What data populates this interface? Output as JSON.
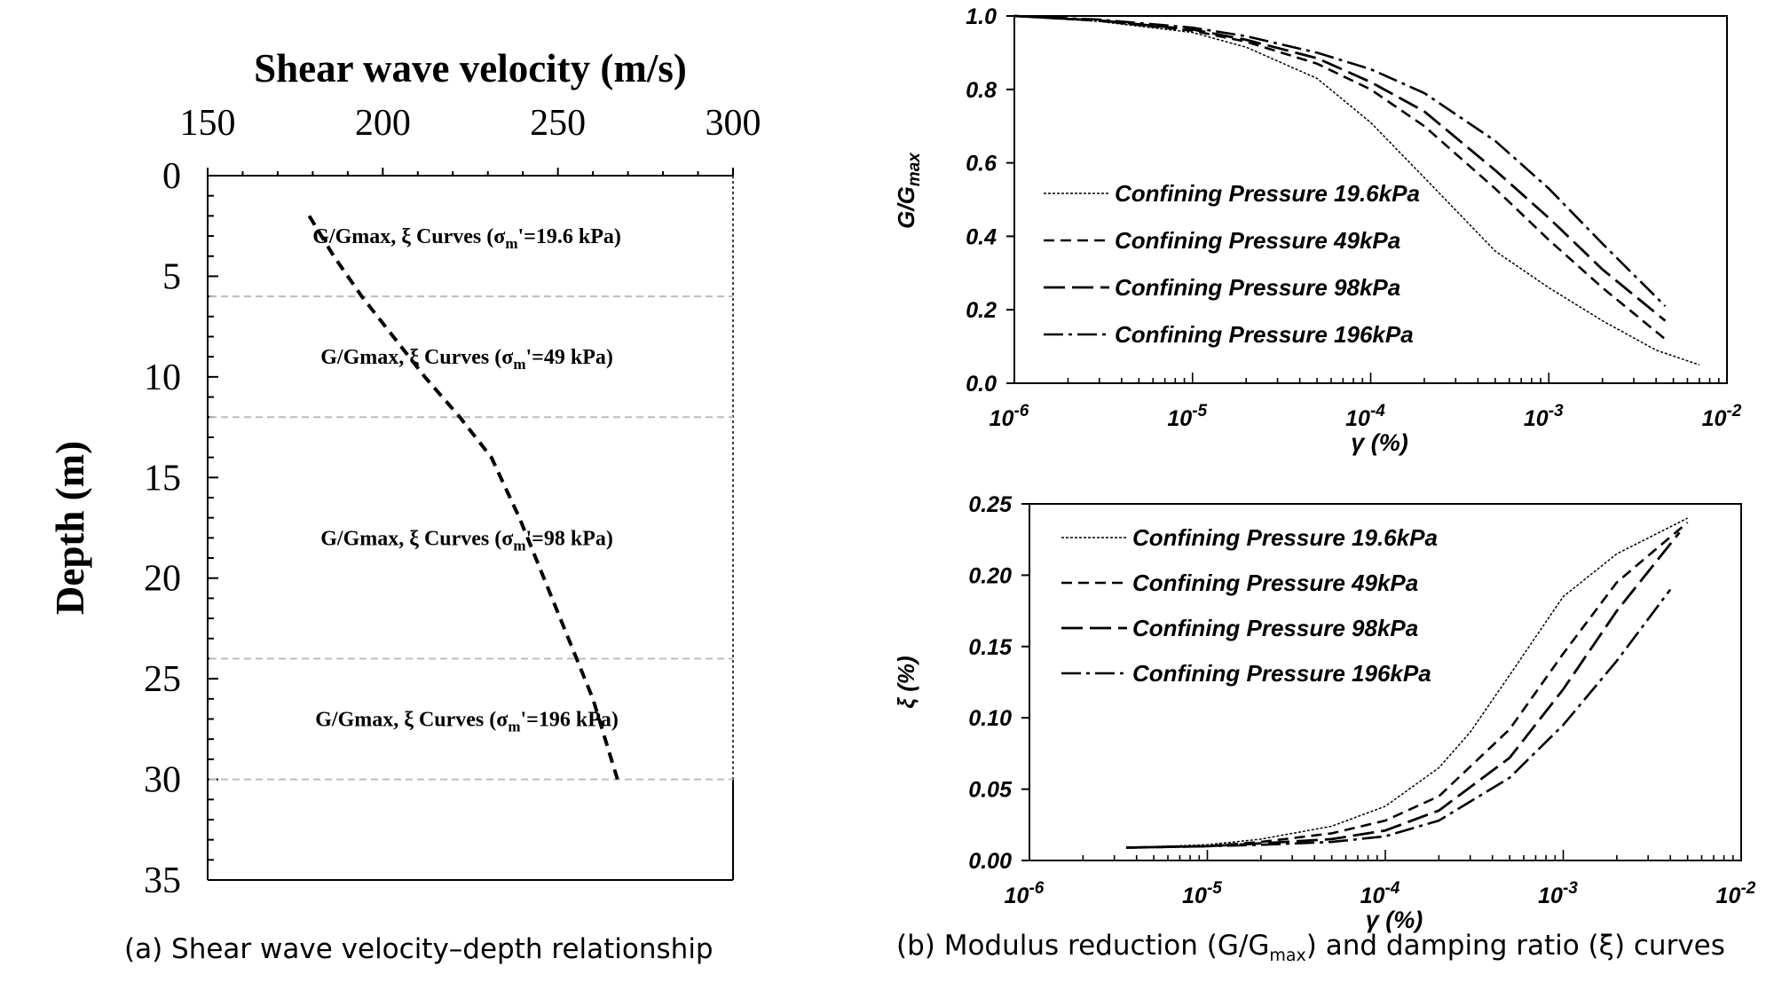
{
  "chart_data": [
    {
      "type": "line",
      "title": "Shear wave velocity (m/s)",
      "xlabel": "Shear wave velocity (m/s)",
      "ylabel": "Depth (m)",
      "xlim": [
        150,
        300
      ],
      "ylim": [
        35,
        0
      ],
      "x_ticks": [
        "150",
        "200",
        "250",
        "300"
      ],
      "y_ticks": [
        "0",
        "5",
        "10",
        "15",
        "20",
        "25",
        "30",
        "35"
      ],
      "series": [
        {
          "x": [
            179,
            186,
            194,
            203,
            212,
            222,
            231,
            239,
            246,
            253,
            260,
            267
          ],
          "y": [
            2,
            4,
            6,
            8,
            10,
            12,
            14,
            17,
            20,
            23,
            26,
            30
          ]
        }
      ],
      "layer_boundaries": [
        6,
        12,
        24,
        30
      ],
      "annotations": [
        {
          "prefix": "G/Gmax,  ξ Curves (σ",
          "sub": "m",
          "suffix": "'=19.6 kPa)",
          "depth": 3
        },
        {
          "prefix": "G/Gmax,  ξ Curves (σ",
          "sub": "m",
          "suffix": "'=49 kPa)",
          "depth": 9
        },
        {
          "prefix": "G/Gmax,  ξ Curves (σ",
          "sub": "m",
          "suffix": "'=98 kPa)",
          "depth": 18
        },
        {
          "prefix": "G/Gmax,  ξ Curves (σ",
          "sub": "m",
          "suffix": "'=196 kPa)",
          "depth": 27
        }
      ],
      "grid": false
    },
    {
      "type": "line",
      "x_scale": "log",
      "xlim": [
        1e-06,
        0.01
      ],
      "ylim": [
        0.0,
        1.0
      ],
      "xlabel": "γ (%)",
      "ylabel_main": "G/G",
      "ylabel_sub": "max",
      "y_ticks": [
        "0.0",
        "0.2",
        "0.4",
        "0.6",
        "0.8",
        "1.0"
      ],
      "x_ticks": [
        {
          "base": "10",
          "exp": "-6"
        },
        {
          "base": "10",
          "exp": "-5"
        },
        {
          "base": "10",
          "exp": "-4"
        },
        {
          "base": "10",
          "exp": "-3"
        },
        {
          "base": "10",
          "exp": "-2"
        }
      ],
      "legend_position": "center-left",
      "series": [
        {
          "name": "Confining Pressure 19.6kPa",
          "x": [
            1e-06,
            3e-06,
            1e-05,
            2e-05,
            5e-05,
            0.0001,
            0.0002,
            0.0005,
            0.001,
            0.002,
            0.004,
            0.007
          ],
          "y": [
            1.0,
            0.985,
            0.955,
            0.915,
            0.83,
            0.71,
            0.56,
            0.36,
            0.26,
            0.17,
            0.09,
            0.05
          ]
        },
        {
          "name": "Confining Pressure 49kPa",
          "x": [
            1e-06,
            3e-06,
            1e-05,
            2e-05,
            5e-05,
            0.0001,
            0.0002,
            0.0005,
            0.001,
            0.002,
            0.0045
          ],
          "y": [
            1.0,
            0.987,
            0.96,
            0.93,
            0.87,
            0.8,
            0.7,
            0.53,
            0.39,
            0.26,
            0.12
          ]
        },
        {
          "name": "Confining Pressure 98kPa",
          "x": [
            1e-06,
            3e-06,
            1e-05,
            2e-05,
            5e-05,
            0.0001,
            0.0002,
            0.0005,
            0.001,
            0.002,
            0.0045
          ],
          "y": [
            1.0,
            0.988,
            0.963,
            0.935,
            0.885,
            0.82,
            0.74,
            0.58,
            0.45,
            0.31,
            0.17
          ]
        },
        {
          "name": "Confining Pressure 196kPa",
          "x": [
            1e-06,
            3e-06,
            1e-05,
            2e-05,
            5e-05,
            0.0001,
            0.0002,
            0.0005,
            0.001,
            0.002,
            0.0045
          ],
          "y": [
            1.0,
            0.99,
            0.968,
            0.945,
            0.9,
            0.855,
            0.79,
            0.66,
            0.53,
            0.38,
            0.21
          ]
        }
      ],
      "grid": false
    },
    {
      "type": "line",
      "x_scale": "log",
      "xlim": [
        1e-06,
        0.01
      ],
      "ylim": [
        0.0,
        0.25
      ],
      "xlabel": "γ (%)",
      "ylabel": "ξ (%)",
      "y_ticks": [
        "0.00",
        "0.05",
        "0.10",
        "0.15",
        "0.20",
        "0.25"
      ],
      "x_ticks": [
        {
          "base": "10",
          "exp": "-6"
        },
        {
          "base": "10",
          "exp": "-5"
        },
        {
          "base": "10",
          "exp": "-4"
        },
        {
          "base": "10",
          "exp": "-3"
        },
        {
          "base": "10",
          "exp": "-2"
        }
      ],
      "legend_position": "top-left",
      "series": [
        {
          "name": "Confining Pressure 19.6kPa",
          "x": [
            3.5e-06,
            1e-05,
            2e-05,
            5e-05,
            0.0001,
            0.0002,
            0.0003,
            0.0005,
            0.001,
            0.002,
            0.005
          ],
          "y": [
            0.009,
            0.011,
            0.015,
            0.024,
            0.038,
            0.065,
            0.09,
            0.13,
            0.185,
            0.215,
            0.24
          ]
        },
        {
          "name": "Confining Pressure 49kPa",
          "x": [
            3.5e-06,
            1e-05,
            2e-05,
            5e-05,
            0.0001,
            0.0002,
            0.0005,
            0.001,
            0.002,
            0.005
          ],
          "y": [
            0.009,
            0.01,
            0.013,
            0.019,
            0.028,
            0.045,
            0.092,
            0.145,
            0.195,
            0.237
          ]
        },
        {
          "name": "Confining Pressure 98kPa",
          "x": [
            3.5e-06,
            1e-05,
            2e-05,
            5e-05,
            0.0001,
            0.0002,
            0.0005,
            0.001,
            0.002,
            0.0045
          ],
          "y": [
            0.009,
            0.01,
            0.012,
            0.015,
            0.021,
            0.035,
            0.072,
            0.12,
            0.175,
            0.23
          ]
        },
        {
          "name": "Confining Pressure 196kPa",
          "x": [
            3.5e-06,
            1e-05,
            2e-05,
            5e-05,
            0.0001,
            0.0002,
            0.0005,
            0.001,
            0.002,
            0.004
          ],
          "y": [
            0.009,
            0.01,
            0.011,
            0.013,
            0.017,
            0.028,
            0.058,
            0.095,
            0.14,
            0.19
          ]
        }
      ],
      "grid": false
    }
  ],
  "captions": {
    "a": "(a) Shear wave velocity–depth relationship",
    "b_prefix": "(b) Modulus reduction (G/G",
    "b_sub": "max",
    "b_suffix": ") and damping ratio (ξ) curves"
  }
}
